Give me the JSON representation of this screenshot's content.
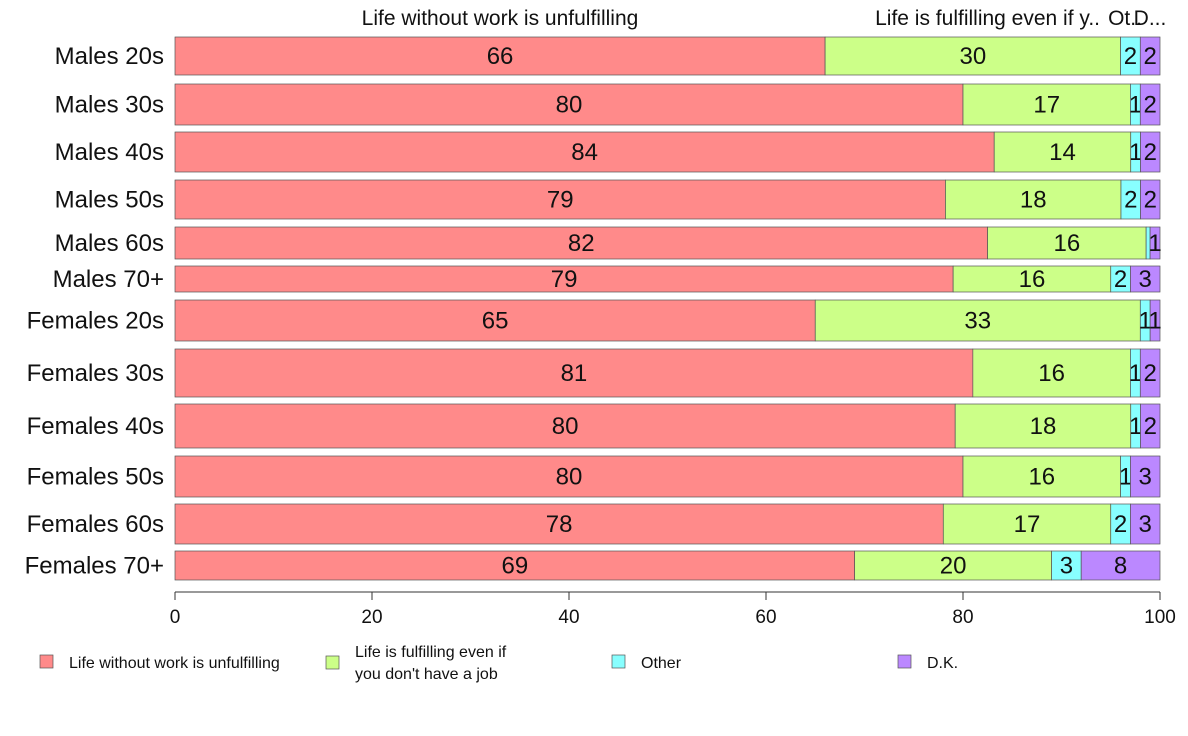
{
  "chart_data": {
    "type": "bar",
    "orientation": "horizontal",
    "stacked": true,
    "top_labels": [
      "Life without work is unfulfilling",
      "Life is fulfilling even if y..",
      "Ot..",
      "D..."
    ],
    "categories": [
      "Males 20s",
      "Males 30s",
      "Males 40s",
      "Males 50s",
      "Males 60s",
      "Males 70+",
      "Females 20s",
      "Females 30s",
      "Females 40s",
      "Females 50s",
      "Females 60s",
      "Females 70+"
    ],
    "series": [
      {
        "name": "Life without work is unfulfilling",
        "color": "#ff8a8a",
        "values": [
          66,
          80,
          84,
          79,
          82,
          79,
          65,
          81,
          80,
          80,
          78,
          69
        ]
      },
      {
        "name": "Life is fulfilling even if you don't have a job",
        "color": "#ccff88",
        "values": [
          30,
          17,
          14,
          18,
          16,
          16,
          33,
          16,
          18,
          16,
          17,
          20
        ]
      },
      {
        "name": "Other",
        "color": "#88ffff",
        "values": [
          2,
          1,
          1,
          2,
          0.4,
          2,
          1,
          1,
          1,
          1,
          2,
          3
        ]
      },
      {
        "name": "D.K.",
        "color": "#bb88ff",
        "values": [
          2,
          2,
          2,
          2,
          1,
          3,
          1,
          2,
          2,
          3,
          3,
          8
        ]
      }
    ],
    "data_labels": [
      [
        "66",
        "80",
        "84",
        "79",
        "82",
        "79",
        "65",
        "81",
        "80",
        "80",
        "78",
        "69"
      ],
      [
        "30",
        "17",
        "14",
        "18",
        "16",
        "16",
        "33",
        "16",
        "18",
        "16",
        "17",
        "20"
      ],
      [
        "2",
        "1",
        "1",
        "2",
        "",
        "2",
        "1",
        "1",
        "1",
        "1",
        "2",
        "3"
      ],
      [
        "2",
        "2",
        "2",
        "2",
        "1",
        "3",
        "1",
        "2",
        "2",
        "3",
        "3",
        "8"
      ]
    ],
    "legend_labels": [
      [
        "Life without work is unfulfilling"
      ],
      [
        "Life is fulfilling even if",
        "you don't have a job"
      ],
      [
        "Other"
      ],
      [
        "D.K."
      ]
    ],
    "xlim": [
      0,
      100
    ],
    "x_ticks": [
      "0",
      "20",
      "40",
      "60",
      "80",
      "100"
    ],
    "grid": false,
    "legend_position": "bottom"
  }
}
